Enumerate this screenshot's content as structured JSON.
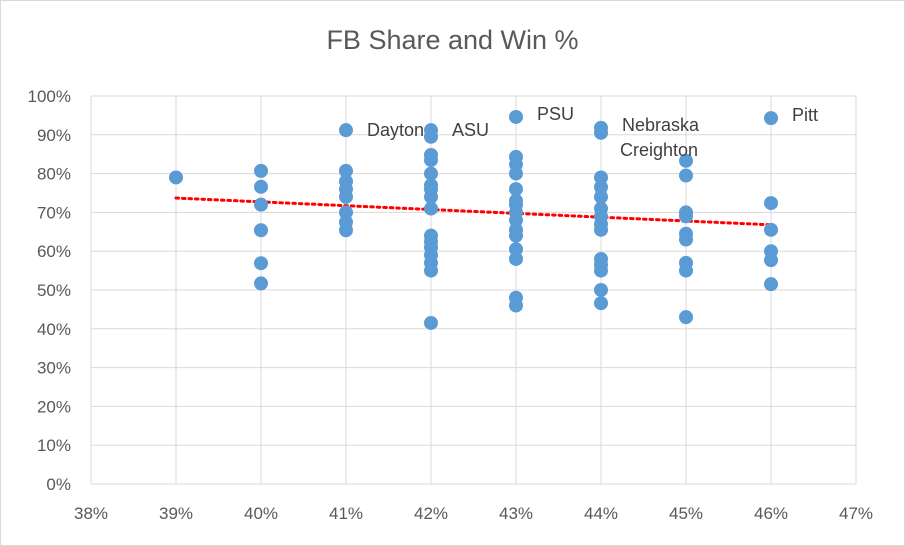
{
  "chart_data": {
    "type": "scatter",
    "title": "FB Share and Win %",
    "xlabel": "",
    "ylabel": "",
    "xlim": [
      0.38,
      0.47
    ],
    "ylim": [
      0,
      1.0
    ],
    "x_ticks": [
      0.38,
      0.39,
      0.4,
      0.41,
      0.42,
      0.43,
      0.44,
      0.45,
      0.46,
      0.47
    ],
    "y_ticks": [
      0,
      0.1,
      0.2,
      0.3,
      0.4,
      0.5,
      0.6,
      0.7,
      0.8,
      0.9,
      1.0
    ],
    "x_tick_labels": [
      "38%",
      "39%",
      "40%",
      "41%",
      "42%",
      "43%",
      "44%",
      "45%",
      "46%",
      "47%"
    ],
    "y_tick_labels": [
      "0%",
      "10%",
      "20%",
      "30%",
      "40%",
      "50%",
      "60%",
      "70%",
      "80%",
      "90%",
      "100%"
    ],
    "grid": true,
    "colors": {
      "points": "#5b9bd5",
      "trendline": "#ff0000",
      "grid": "#d9d9d9",
      "text": "#595959"
    },
    "series": [
      {
        "points": [
          {
            "x": 0.39,
            "y": 0.79
          },
          {
            "x": 0.4,
            "y": 0.807
          },
          {
            "x": 0.4,
            "y": 0.766
          },
          {
            "x": 0.4,
            "y": 0.72
          },
          {
            "x": 0.4,
            "y": 0.654
          },
          {
            "x": 0.4,
            "y": 0.569
          },
          {
            "x": 0.4,
            "y": 0.517
          },
          {
            "x": 0.41,
            "y": 0.912
          },
          {
            "x": 0.41,
            "y": 0.807
          },
          {
            "x": 0.41,
            "y": 0.78
          },
          {
            "x": 0.41,
            "y": 0.76
          },
          {
            "x": 0.41,
            "y": 0.74
          },
          {
            "x": 0.41,
            "y": 0.7
          },
          {
            "x": 0.41,
            "y": 0.675
          },
          {
            "x": 0.41,
            "y": 0.654
          },
          {
            "x": 0.42,
            "y": 0.912
          },
          {
            "x": 0.42,
            "y": 0.895
          },
          {
            "x": 0.42,
            "y": 0.848
          },
          {
            "x": 0.42,
            "y": 0.835
          },
          {
            "x": 0.42,
            "y": 0.8
          },
          {
            "x": 0.42,
            "y": 0.77
          },
          {
            "x": 0.42,
            "y": 0.76
          },
          {
            "x": 0.42,
            "y": 0.74
          },
          {
            "x": 0.42,
            "y": 0.71
          },
          {
            "x": 0.42,
            "y": 0.64
          },
          {
            "x": 0.42,
            "y": 0.625
          },
          {
            "x": 0.42,
            "y": 0.61
          },
          {
            "x": 0.42,
            "y": 0.59
          },
          {
            "x": 0.42,
            "y": 0.57
          },
          {
            "x": 0.42,
            "y": 0.55
          },
          {
            "x": 0.42,
            "y": 0.415
          },
          {
            "x": 0.43,
            "y": 0.946
          },
          {
            "x": 0.43,
            "y": 0.843
          },
          {
            "x": 0.43,
            "y": 0.824
          },
          {
            "x": 0.43,
            "y": 0.8
          },
          {
            "x": 0.43,
            "y": 0.76
          },
          {
            "x": 0.43,
            "y": 0.73
          },
          {
            "x": 0.43,
            "y": 0.72
          },
          {
            "x": 0.43,
            "y": 0.7
          },
          {
            "x": 0.43,
            "y": 0.68
          },
          {
            "x": 0.43,
            "y": 0.655
          },
          {
            "x": 0.43,
            "y": 0.64
          },
          {
            "x": 0.43,
            "y": 0.605
          },
          {
            "x": 0.43,
            "y": 0.58
          },
          {
            "x": 0.43,
            "y": 0.48
          },
          {
            "x": 0.43,
            "y": 0.46
          },
          {
            "x": 0.44,
            "y": 0.918
          },
          {
            "x": 0.44,
            "y": 0.905
          },
          {
            "x": 0.44,
            "y": 0.79
          },
          {
            "x": 0.44,
            "y": 0.765
          },
          {
            "x": 0.44,
            "y": 0.74
          },
          {
            "x": 0.44,
            "y": 0.71
          },
          {
            "x": 0.44,
            "y": 0.69
          },
          {
            "x": 0.44,
            "y": 0.67
          },
          {
            "x": 0.44,
            "y": 0.655
          },
          {
            "x": 0.44,
            "y": 0.58
          },
          {
            "x": 0.44,
            "y": 0.565
          },
          {
            "x": 0.44,
            "y": 0.55
          },
          {
            "x": 0.44,
            "y": 0.5
          },
          {
            "x": 0.44,
            "y": 0.466
          },
          {
            "x": 0.45,
            "y": 0.833
          },
          {
            "x": 0.45,
            "y": 0.795
          },
          {
            "x": 0.45,
            "y": 0.7
          },
          {
            "x": 0.45,
            "y": 0.69
          },
          {
            "x": 0.45,
            "y": 0.645
          },
          {
            "x": 0.45,
            "y": 0.63
          },
          {
            "x": 0.45,
            "y": 0.57
          },
          {
            "x": 0.45,
            "y": 0.55
          },
          {
            "x": 0.45,
            "y": 0.43
          },
          {
            "x": 0.46,
            "y": 0.943
          },
          {
            "x": 0.46,
            "y": 0.724
          },
          {
            "x": 0.46,
            "y": 0.655
          },
          {
            "x": 0.46,
            "y": 0.6
          },
          {
            "x": 0.46,
            "y": 0.577
          },
          {
            "x": 0.46,
            "y": 0.515
          }
        ]
      }
    ],
    "trendline": {
      "style": "dotted",
      "x": [
        0.39,
        0.46
      ],
      "y": [
        0.737,
        0.668
      ]
    },
    "annotations": [
      {
        "text": "Dayton",
        "x": 0.41,
        "y": 0.912
      },
      {
        "text": "ASU",
        "x": 0.42,
        "y": 0.912
      },
      {
        "text": "PSU",
        "x": 0.43,
        "y": 0.946
      },
      {
        "text": "Nebraska",
        "x": 0.44,
        "y": 0.918
      },
      {
        "text": "Creighton",
        "x": 0.44,
        "y": 0.905
      },
      {
        "text": "Pitt",
        "x": 0.46,
        "y": 0.943
      }
    ]
  }
}
